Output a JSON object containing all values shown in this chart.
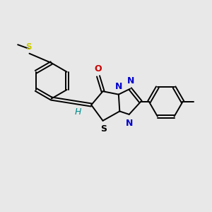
{
  "background_color": "#e8e8e8",
  "bond_color": "#000000",
  "atom_colors": {
    "S_methylthio": "#cccc00",
    "S_ring": "#000000",
    "N": "#0000cc",
    "O": "#cc0000",
    "H": "#008b8b",
    "C": "#000000"
  },
  "figsize": [
    3.0,
    3.0
  ],
  "dpi": 100
}
